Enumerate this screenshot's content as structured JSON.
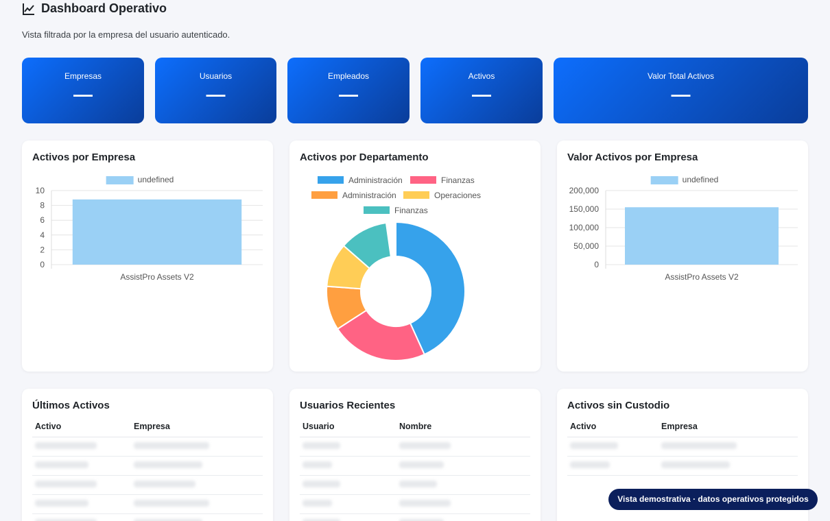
{
  "header": {
    "title": "Dashboard Operativo",
    "subtitle": "Vista filtrada por la empresa del usuario autenticado.",
    "icon": "line-chart-icon"
  },
  "kpis": [
    {
      "label": "Empresas",
      "value": "—"
    },
    {
      "label": "Usuarios",
      "value": "—"
    },
    {
      "label": "Empleados",
      "value": "—"
    },
    {
      "label": "Activos",
      "value": "—"
    },
    {
      "label": "Valor Total Activos",
      "value": "—"
    }
  ],
  "cards": {
    "activos_empresa": "Activos por Empresa",
    "activos_departamento": "Activos por Departamento",
    "valor_empresa": "Valor Activos por Empresa",
    "ultimos_activos": "Últimos Activos",
    "usuarios_recientes": "Usuarios Recientes",
    "sin_custodio": "Activos sin Custodio"
  },
  "chart_data": [
    {
      "type": "bar",
      "title": "Activos por Empresa",
      "legend": [
        "undefined"
      ],
      "categories": [
        "AssistPro Assets V2"
      ],
      "values": [
        8.8
      ],
      "yticks": [
        "0",
        "2",
        "4",
        "6",
        "8",
        "10"
      ],
      "ylim": [
        0,
        10
      ],
      "color": "#9ad0f5"
    },
    {
      "type": "pie",
      "title": "Activos por Departamento",
      "legend": [
        {
          "label": "Administración",
          "color": "#36a2eb"
        },
        {
          "label": "Finanzas",
          "color": "#ff6384"
        },
        {
          "label": "Administración",
          "color": "#ff9f40"
        },
        {
          "label": "Operaciones",
          "color": "#ffcd56"
        },
        {
          "label": "Finanzas",
          "color": "#4bc0c0"
        }
      ],
      "values": [
        42,
        22,
        10,
        10,
        11
      ]
    },
    {
      "type": "bar",
      "title": "Valor Activos por Empresa",
      "legend": [
        "undefined"
      ],
      "categories": [
        "AssistPro Assets V2"
      ],
      "values": [
        155000
      ],
      "yticks": [
        "0",
        "50,000",
        "100,000",
        "150,000",
        "200,000"
      ],
      "ylim": [
        0,
        200000
      ],
      "color": "#9ad0f5"
    }
  ],
  "tables": {
    "ultimos": {
      "columns": [
        "Activo",
        "Empresa"
      ],
      "rows": 5
    },
    "usuarios": {
      "columns": [
        "Usuario",
        "Nombre"
      ],
      "rows": 5
    },
    "custodio": {
      "columns": [
        "Activo",
        "Empresa"
      ],
      "rows": 2
    }
  },
  "toast": "Vista demostrativa · datos operativos protegidos"
}
